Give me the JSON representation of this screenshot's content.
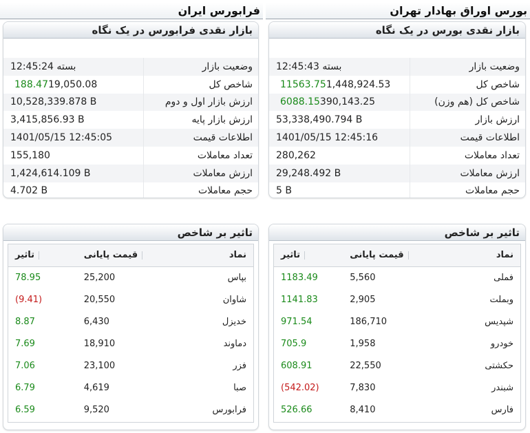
{
  "left": {
    "site_title": "فرابورس ایران",
    "summary": {
      "title": "بازار نقدی فرابورس در یک نگاه",
      "rows": [
        {
          "label": "وضعیت بازار",
          "value": "بسته 12:45:24",
          "change": "",
          "change_color": ""
        },
        {
          "label": "شاخص کل",
          "value": "19,050.08",
          "change": "188.47",
          "change_color": "green"
        },
        {
          "label": "ارزش بازار اول و دوم",
          "value": "10,528,339.878 B",
          "change": "",
          "change_color": ""
        },
        {
          "label": "ارزش بازار پایه",
          "value": "3,415,856.93 B",
          "change": "",
          "change_color": ""
        },
        {
          "label": "اطلاعات قیمت",
          "value": "1401/05/15 12:45:05",
          "change": "",
          "change_color": ""
        },
        {
          "label": "تعداد معاملات",
          "value": "155,180",
          "change": "",
          "change_color": ""
        },
        {
          "label": "ارزش معاملات",
          "value": "1,424,614.109 B",
          "change": "",
          "change_color": ""
        },
        {
          "label": "حجم معاملات",
          "value": "4.702 B",
          "change": "",
          "change_color": ""
        }
      ]
    },
    "impact": {
      "title": "تاثیر بر شاخص",
      "headers": {
        "symbol": "نماد",
        "price": "قیمت پایانی",
        "effect": "تاثیر"
      },
      "rows": [
        {
          "symbol": "بپاس",
          "price": "25,200",
          "effect": "78.95",
          "color": "green"
        },
        {
          "symbol": "شاوان",
          "price": "20,550",
          "effect": "(9.41)",
          "color": "red"
        },
        {
          "symbol": "خدیزل",
          "price": "6,430",
          "effect": "8.87",
          "color": "green"
        },
        {
          "symbol": "دماوند",
          "price": "18,910",
          "effect": "7.69",
          "color": "green"
        },
        {
          "symbol": "فزر",
          "price": "23,100",
          "effect": "7.06",
          "color": "green"
        },
        {
          "symbol": "صبا",
          "price": "4,619",
          "effect": "6.79",
          "color": "green"
        },
        {
          "symbol": "فرابورس",
          "price": "9,520",
          "effect": "6.59",
          "color": "green"
        }
      ]
    }
  },
  "right": {
    "site_title": "بورس اوراق بهادار تهران",
    "summary": {
      "title": "بازار نقدی بورس در یک نگاه",
      "rows": [
        {
          "label": "وضعیت بازار",
          "value": "بسته 12:45:43",
          "change": "",
          "change_color": ""
        },
        {
          "label": "شاخص کل",
          "value": "1,448,924.53",
          "change": "11563.75",
          "change_color": "green"
        },
        {
          "label": "شاخص کل (هم وزن)",
          "value": "390,143.25",
          "change": "6088.15",
          "change_color": "green"
        },
        {
          "label": "ارزش بازار",
          "value": "53,338,490.794 B",
          "change": "",
          "change_color": ""
        },
        {
          "label": "اطلاعات قیمت",
          "value": "1401/05/15 12:45:16",
          "change": "",
          "change_color": ""
        },
        {
          "label": "تعداد معاملات",
          "value": "280,262",
          "change": "",
          "change_color": ""
        },
        {
          "label": "ارزش معاملات",
          "value": "29,248.492 B",
          "change": "",
          "change_color": ""
        },
        {
          "label": "حجم معاملات",
          "value": "5 B",
          "change": "",
          "change_color": ""
        }
      ]
    },
    "impact": {
      "title": "تاثیر بر شاخص",
      "headers": {
        "symbol": "نماد",
        "price": "قیمت پایانی",
        "effect": "تاثیر"
      },
      "rows": [
        {
          "symbol": "فملی",
          "price": "5,560",
          "effect": "1183.49",
          "color": "green"
        },
        {
          "symbol": "وبملت",
          "price": "2,905",
          "effect": "1141.83",
          "color": "green"
        },
        {
          "symbol": "شپدیس",
          "price": "186,710",
          "effect": "971.54",
          "color": "green"
        },
        {
          "symbol": "خودرو",
          "price": "1,958",
          "effect": "705.9",
          "color": "green"
        },
        {
          "symbol": "حکشتی",
          "price": "22,550",
          "effect": "608.91",
          "color": "green"
        },
        {
          "symbol": "شبندر",
          "price": "7,830",
          "effect": "(542.02)",
          "color": "red"
        },
        {
          "symbol": "فارس",
          "price": "8,410",
          "effect": "526.66",
          "color": "green"
        }
      ]
    }
  },
  "colors": {
    "positive": "#1a8a1a",
    "negative": "#c41a1a"
  }
}
